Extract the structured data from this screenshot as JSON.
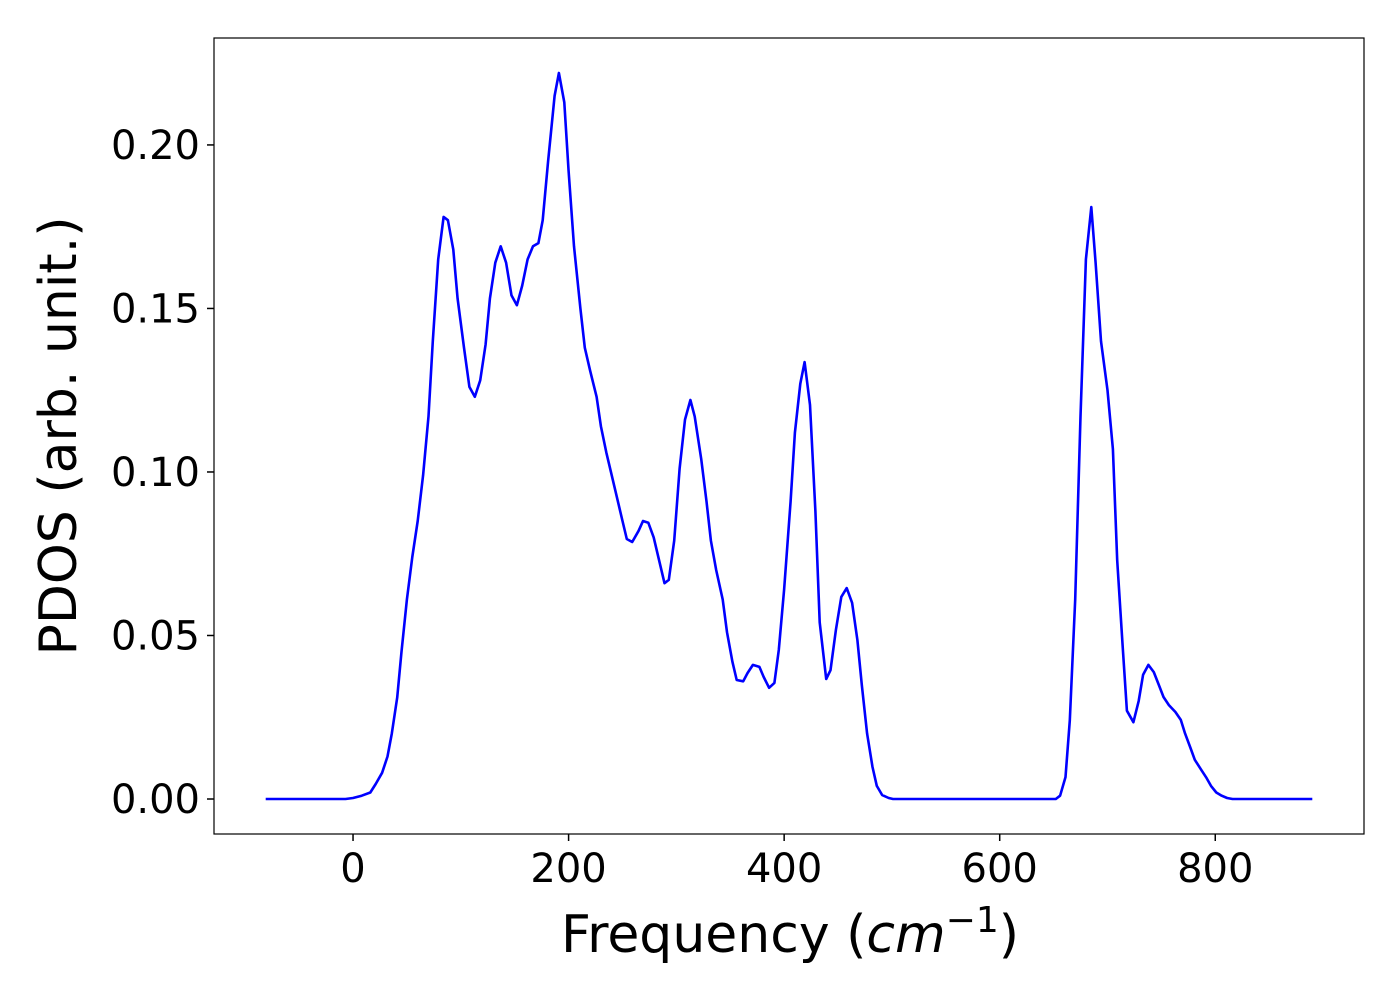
{
  "chart_data": {
    "type": "line",
    "x_label": [
      "Frequency (",
      "cm",
      "−1",
      ")"
    ],
    "y_label": "PDOS (arb. unit.)",
    "x": [
      -81,
      -7,
      0,
      8,
      16,
      21,
      27,
      32,
      36,
      41,
      45,
      50,
      55,
      60,
      65,
      70,
      74,
      79,
      84,
      88,
      93,
      97,
      103,
      108,
      113,
      118,
      123,
      127,
      132,
      137,
      142,
      147,
      152,
      157,
      162,
      167,
      172,
      176,
      181,
      187,
      191,
      196,
      200,
      205,
      211,
      215,
      220,
      226,
      230,
      235,
      240,
      245,
      250,
      254,
      259,
      265,
      269,
      274,
      279,
      284,
      289,
      293,
      298,
      303,
      308,
      313,
      317,
      323,
      328,
      332,
      337,
      343,
      347,
      352,
      356,
      362,
      366,
      371,
      377,
      381,
      386,
      391,
      395,
      400,
      406,
      410,
      415,
      419,
      424,
      429,
      433,
      439,
      443,
      448,
      453,
      458,
      463,
      468,
      472,
      477,
      482,
      486,
      491,
      497,
      501,
      652,
      656,
      661,
      665,
      670,
      675,
      680,
      685,
      689,
      694,
      700,
      705,
      709,
      714,
      718,
      724,
      729,
      733,
      738,
      743,
      748,
      752,
      757,
      763,
      768,
      772,
      777,
      781,
      787,
      792,
      796,
      801,
      806,
      811,
      816,
      890
    ],
    "values": [
      0,
      0,
      0.0003,
      0.001,
      0.002,
      0.0046,
      0.008,
      0.013,
      0.02,
      0.031,
      0.045,
      0.061,
      0.074,
      0.085,
      0.099,
      0.117,
      0.14,
      0.165,
      0.178,
      0.177,
      0.168,
      0.153,
      0.138,
      0.126,
      0.123,
      0.128,
      0.139,
      0.153,
      0.164,
      0.169,
      0.164,
      0.154,
      0.151,
      0.157,
      0.165,
      0.169,
      0.17,
      0.177,
      0.195,
      0.215,
      0.222,
      0.213,
      0.192,
      0.169,
      0.15,
      0.138,
      0.131,
      0.123,
      0.114,
      0.106,
      0.099,
      0.092,
      0.085,
      0.0795,
      0.0786,
      0.082,
      0.085,
      0.0845,
      0.08,
      0.073,
      0.066,
      0.067,
      0.079,
      0.101,
      0.116,
      0.122,
      0.117,
      0.104,
      0.091,
      0.079,
      0.07,
      0.061,
      0.051,
      0.042,
      0.0364,
      0.036,
      0.0385,
      0.041,
      0.0404,
      0.0373,
      0.034,
      0.0355,
      0.0456,
      0.064,
      0.091,
      0.112,
      0.127,
      0.1336,
      0.1205,
      0.088,
      0.054,
      0.0367,
      0.0394,
      0.0517,
      0.0618,
      0.0645,
      0.06,
      0.0486,
      0.0349,
      0.02,
      0.0098,
      0.004,
      0.0012,
      0.0003,
      0,
      0,
      0.001,
      0.0067,
      0.024,
      0.061,
      0.117,
      0.165,
      0.181,
      0.164,
      0.14,
      0.125,
      0.107,
      0.073,
      0.047,
      0.027,
      0.0235,
      0.03,
      0.038,
      0.041,
      0.0388,
      0.0346,
      0.0312,
      0.0287,
      0.0266,
      0.0242,
      0.02,
      0.0156,
      0.012,
      0.0089,
      0.0064,
      0.004,
      0.002,
      0.001,
      0.0003,
      0,
      0
    ],
    "color": "#0000ff",
    "xlim": [
      -129,
      938
    ],
    "ylim": [
      -0.0107,
      0.2327
    ],
    "xticks": [
      0,
      200,
      400,
      600,
      800
    ],
    "yticks": [
      {
        "value": 0,
        "label": "0.00"
      },
      {
        "value": 0.05,
        "label": "0.05"
      },
      {
        "value": 0.1,
        "label": "0.10"
      },
      {
        "value": 0.15,
        "label": "0.15"
      },
      {
        "value": 0.2,
        "label": "0.20"
      }
    ]
  }
}
